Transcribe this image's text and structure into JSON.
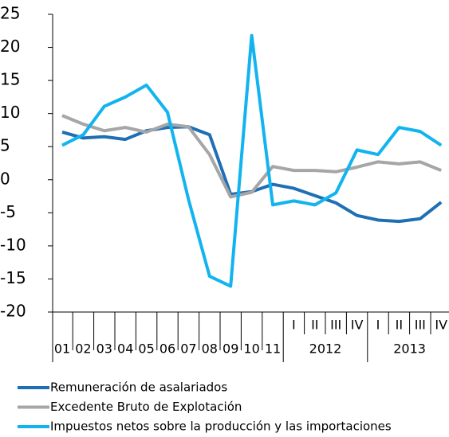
{
  "chart_data": {
    "type": "line",
    "categories": [
      "01",
      "02",
      "03",
      "04",
      "05",
      "06",
      "07",
      "08",
      "09",
      "10",
      "11",
      "I",
      "II",
      "III",
      "IV",
      "I",
      "II",
      "III",
      "IV"
    ],
    "x_groups": [
      "2012",
      "2013"
    ],
    "series": [
      {
        "name": "Remuneración de asalariados",
        "color": "#1f6fb5",
        "values": [
          7.2,
          6.3,
          6.5,
          6.1,
          7.4,
          7.9,
          8.0,
          6.8,
          -2.2,
          -1.8,
          -0.7,
          -1.3,
          -2.4,
          -3.5,
          -5.4,
          -6.1,
          -6.3,
          -5.9,
          -3.4
        ]
      },
      {
        "name": "Excedente Bruto de Explotación",
        "color": "#a6a6a6",
        "values": [
          9.7,
          8.4,
          7.4,
          7.9,
          7.2,
          8.4,
          8.0,
          3.8,
          -2.6,
          -1.9,
          2.0,
          1.4,
          1.4,
          1.2,
          1.9,
          2.7,
          2.4,
          2.7,
          1.4
        ]
      },
      {
        "name": "Impuestos netos sobre la producción y las importaciones",
        "color": "#12b4ef",
        "values": [
          5.2,
          6.8,
          11.1,
          12.5,
          14.3,
          10.2,
          -3.0,
          -14.6,
          -16.1,
          21.8,
          -3.8,
          -3.2,
          -3.8,
          -2.0,
          4.5,
          3.8,
          7.9,
          7.3,
          5.2
        ]
      }
    ],
    "ylim": [
      -20,
      25
    ],
    "yticks": [
      -20,
      -15,
      -10,
      -5,
      0,
      5,
      10,
      15,
      20,
      25
    ]
  }
}
